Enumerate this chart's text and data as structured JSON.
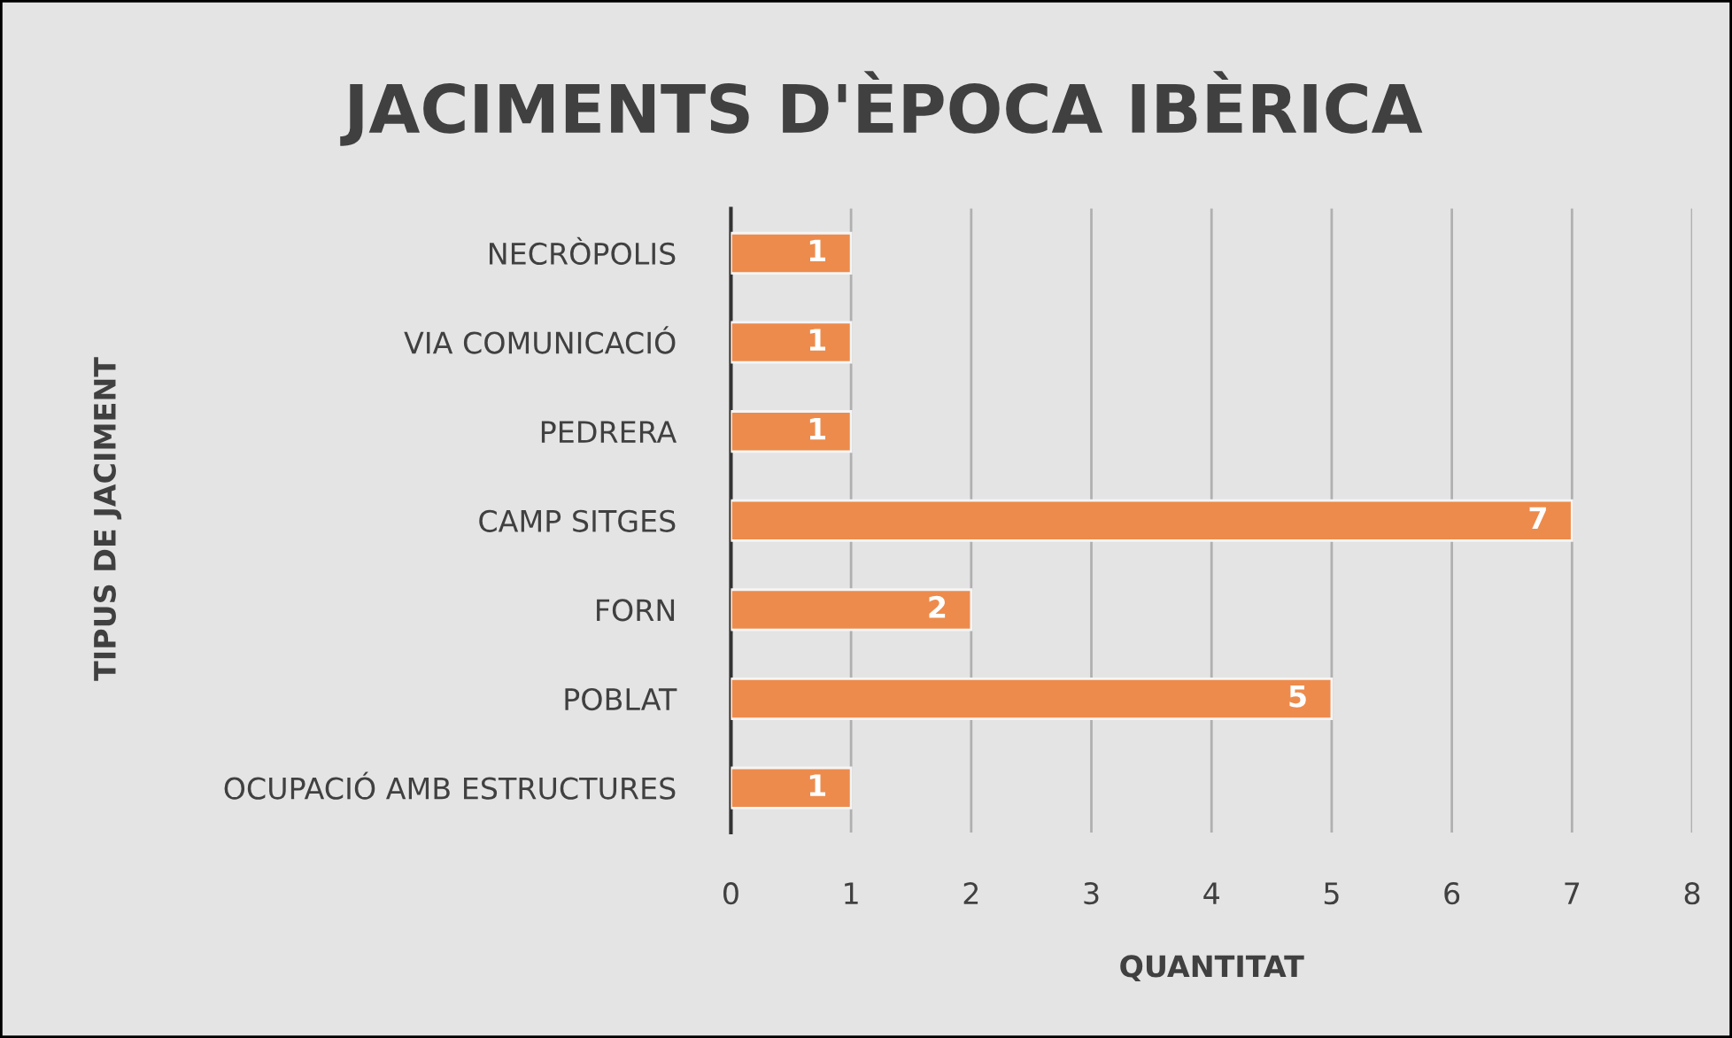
{
  "chart_data": {
    "type": "bar",
    "orientation": "horizontal",
    "title": "JACIMENTS D'ÈPOCA IBÈRICA",
    "xlabel": "QUANTITAT",
    "ylabel": "TIPUS DE JACIMENT",
    "categories": [
      "NECRÒPOLIS",
      "VIA COMUNICACIÓ",
      "PEDRERA",
      "CAMP SITGES",
      "FORN",
      "POBLAT",
      "OCUPACIÓ AMB ESTRUCTURES"
    ],
    "values": [
      1,
      1,
      1,
      7,
      2,
      5,
      1
    ],
    "color": "#ed8b4c",
    "xlim": [
      0,
      8
    ],
    "xticks": [
      0,
      1,
      2,
      3,
      4,
      5,
      6,
      7,
      8
    ],
    "grid": "x",
    "data_labels": true,
    "legend": false
  }
}
